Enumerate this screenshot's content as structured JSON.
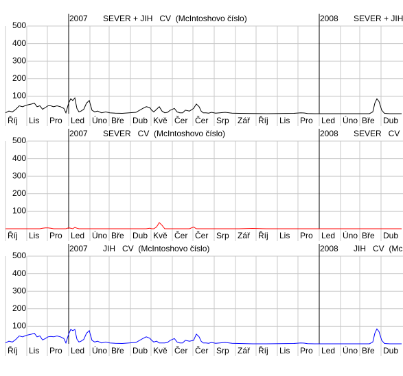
{
  "chart_data": [
    {
      "type": "line",
      "title": "SEVER + JIH   CV  (McIntoshovo číslo)",
      "markers": [
        {
          "x": 92,
          "label": "2007"
        },
        {
          "x": 457,
          "label": "2008"
        }
      ],
      "xlim": [
        -8,
        579
      ],
      "ylim": [
        0,
        500
      ],
      "yticks": [
        100,
        200,
        300,
        400,
        500
      ],
      "grid": true,
      "xticks": [
        {
          "value": 0,
          "label": "Říj"
        },
        {
          "value": 31,
          "label": "Lis"
        },
        {
          "value": 61,
          "label": "Pro"
        },
        {
          "value": 92,
          "label": "Led"
        },
        {
          "value": 123,
          "label": "Úno"
        },
        {
          "value": 151,
          "label": "Bře"
        },
        {
          "value": 182,
          "label": "Dub"
        },
        {
          "value": 212,
          "label": "Kvě"
        },
        {
          "value": 243,
          "label": "Čer"
        },
        {
          "value": 273,
          "label": "Čer"
        },
        {
          "value": 304,
          "label": "Srp"
        },
        {
          "value": 335,
          "label": "Zář"
        },
        {
          "value": 365,
          "label": "Říj"
        },
        {
          "value": 396,
          "label": "Lis"
        },
        {
          "value": 426,
          "label": "Pro"
        },
        {
          "value": 457,
          "label": "Led"
        },
        {
          "value": 488,
          "label": "Úno"
        },
        {
          "value": 516,
          "label": "Bře"
        },
        {
          "value": 547,
          "label": "Dub"
        }
      ],
      "series": [
        {
          "color": "#000000",
          "x": [
            0,
            5,
            10,
            15,
            20,
            25,
            28,
            32,
            38,
            42,
            46,
            50,
            54,
            58,
            62,
            66,
            70,
            75,
            80,
            85,
            88,
            92,
            95,
            98,
            101,
            104,
            107,
            110,
            114,
            118,
            122,
            126,
            130,
            134,
            140,
            146,
            152,
            160,
            170,
            180,
            190,
            200,
            205,
            210,
            213,
            216,
            220,
            224,
            228,
            232,
            236,
            240,
            246,
            250,
            254,
            258,
            262,
            268,
            274,
            278,
            282,
            285,
            288,
            292,
            296,
            300,
            306,
            312,
            320,
            330,
            340,
            360,
            380,
            400,
            420,
            430,
            435,
            440,
            450,
            470,
            500,
            520,
            530,
            535,
            538,
            541,
            544,
            548,
            552,
            560,
            577
          ],
          "values": [
            5,
            15,
            10,
            25,
            45,
            40,
            45,
            50,
            55,
            60,
            40,
            45,
            25,
            35,
            45,
            45,
            40,
            45,
            40,
            30,
            5,
            60,
            85,
            75,
            90,
            30,
            10,
            15,
            25,
            60,
            75,
            20,
            10,
            15,
            5,
            10,
            5,
            3,
            2,
            5,
            8,
            30,
            40,
            35,
            20,
            10,
            25,
            40,
            15,
            5,
            8,
            20,
            30,
            10,
            5,
            5,
            20,
            15,
            30,
            55,
            40,
            15,
            5,
            5,
            3,
            8,
            3,
            5,
            8,
            3,
            2,
            1,
            0,
            1,
            2,
            5,
            4,
            1,
            0,
            0,
            0,
            0,
            0,
            10,
            60,
            85,
            70,
            20,
            2,
            0,
            0
          ]
        }
      ]
    },
    {
      "type": "line",
      "title": "SEVER   CV  (McIntoshovo číslo)",
      "markers": [
        {
          "x": 92,
          "label": "2007"
        },
        {
          "x": 457,
          "label": "2008"
        }
      ],
      "xlim": [
        -8,
        579
      ],
      "ylim": [
        0,
        500
      ],
      "yticks": [
        100,
        200,
        300,
        400,
        500
      ],
      "grid": true,
      "xticks": [
        {
          "value": 0,
          "label": "Říj"
        },
        {
          "value": 31,
          "label": "Lis"
        },
        {
          "value": 61,
          "label": "Pro"
        },
        {
          "value": 92,
          "label": "Led"
        },
        {
          "value": 123,
          "label": "Úno"
        },
        {
          "value": 151,
          "label": "Bře"
        },
        {
          "value": 182,
          "label": "Dub"
        },
        {
          "value": 212,
          "label": "Kvě"
        },
        {
          "value": 243,
          "label": "Čer"
        },
        {
          "value": 273,
          "label": "Čer"
        },
        {
          "value": 304,
          "label": "Srp"
        },
        {
          "value": 335,
          "label": "Zář"
        },
        {
          "value": 365,
          "label": "Říj"
        },
        {
          "value": 396,
          "label": "Lis"
        },
        {
          "value": 426,
          "label": "Pro"
        },
        {
          "value": 457,
          "label": "Led"
        },
        {
          "value": 488,
          "label": "Úno"
        },
        {
          "value": 516,
          "label": "Bře"
        },
        {
          "value": 547,
          "label": "Dub"
        }
      ],
      "series": [
        {
          "color": "#ff0000",
          "x": [
            0,
            5,
            10,
            15,
            20,
            25,
            28,
            32,
            38,
            42,
            46,
            50,
            54,
            58,
            62,
            66,
            70,
            75,
            80,
            85,
            88,
            92,
            95,
            98,
            101,
            104,
            107,
            110,
            114,
            118,
            122,
            126,
            130,
            134,
            140,
            146,
            152,
            160,
            170,
            180,
            190,
            200,
            205,
            210,
            213,
            216,
            220,
            224,
            228,
            232,
            236,
            240,
            246,
            250,
            254,
            258,
            262,
            268,
            274,
            278,
            282,
            285,
            288,
            292,
            296,
            300,
            306,
            312,
            320,
            330,
            340,
            360,
            380,
            400,
            420,
            430,
            435,
            440,
            450,
            470,
            500,
            520,
            530,
            535,
            538,
            541,
            544,
            548,
            552,
            560,
            577
          ],
          "values": [
            0,
            0,
            0,
            0,
            0,
            0,
            0,
            0,
            0,
            0,
            0,
            0,
            3,
            5,
            5,
            3,
            0,
            0,
            0,
            0,
            0,
            5,
            3,
            0,
            8,
            3,
            0,
            0,
            0,
            0,
            0,
            0,
            0,
            0,
            0,
            0,
            0,
            0,
            0,
            0,
            0,
            0,
            0,
            3,
            0,
            0,
            10,
            35,
            20,
            0,
            0,
            0,
            0,
            0,
            0,
            0,
            0,
            0,
            10,
            0,
            0,
            0,
            0,
            0,
            0,
            0,
            0,
            0,
            0,
            0,
            0,
            2,
            0,
            0,
            0,
            0,
            0,
            0,
            0,
            0,
            0,
            0,
            0,
            0,
            0,
            0,
            0,
            0,
            0,
            0,
            0
          ]
        }
      ]
    },
    {
      "type": "line",
      "title": "JIH   CV  (McIntoshovo číslo)",
      "markers": [
        {
          "x": 92,
          "label": "2007"
        },
        {
          "x": 457,
          "label": "2008"
        }
      ],
      "xlim": [
        -8,
        579
      ],
      "ylim": [
        0,
        500
      ],
      "yticks": [
        100,
        200,
        300,
        400,
        500
      ],
      "grid": true,
      "xticks": [
        {
          "value": 0,
          "label": "Říj"
        },
        {
          "value": 31,
          "label": "Lis"
        },
        {
          "value": 61,
          "label": "Pro"
        },
        {
          "value": 92,
          "label": "Led"
        },
        {
          "value": 123,
          "label": "Úno"
        },
        {
          "value": 151,
          "label": "Bře"
        },
        {
          "value": 182,
          "label": "Dub"
        },
        {
          "value": 212,
          "label": "Kvě"
        },
        {
          "value": 243,
          "label": "Čer"
        },
        {
          "value": 273,
          "label": "Čer"
        },
        {
          "value": 304,
          "label": "Srp"
        },
        {
          "value": 335,
          "label": "Zář"
        },
        {
          "value": 365,
          "label": "Říj"
        },
        {
          "value": 396,
          "label": "Lis"
        },
        {
          "value": 426,
          "label": "Pro"
        },
        {
          "value": 457,
          "label": "Led"
        },
        {
          "value": 488,
          "label": "Úno"
        },
        {
          "value": 516,
          "label": "Bře"
        },
        {
          "value": 547,
          "label": "Dub"
        }
      ],
      "series": [
        {
          "color": "#0000ff",
          "x": [
            0,
            5,
            10,
            15,
            20,
            25,
            28,
            32,
            38,
            42,
            46,
            50,
            54,
            58,
            62,
            66,
            70,
            75,
            80,
            85,
            88,
            92,
            95,
            98,
            101,
            104,
            107,
            110,
            114,
            118,
            122,
            126,
            130,
            134,
            140,
            146,
            152,
            160,
            170,
            180,
            190,
            200,
            205,
            210,
            213,
            216,
            220,
            224,
            228,
            232,
            236,
            240,
            246,
            250,
            254,
            258,
            262,
            268,
            274,
            278,
            282,
            285,
            288,
            292,
            296,
            300,
            306,
            312,
            320,
            330,
            340,
            360,
            380,
            400,
            420,
            430,
            435,
            440,
            450,
            470,
            500,
            520,
            530,
            535,
            538,
            541,
            544,
            548,
            552,
            560,
            577
          ],
          "values": [
            5,
            15,
            10,
            25,
            45,
            40,
            45,
            50,
            55,
            60,
            40,
            45,
            22,
            30,
            40,
            42,
            40,
            45,
            40,
            30,
            5,
            55,
            82,
            75,
            82,
            27,
            10,
            15,
            25,
            60,
            75,
            20,
            10,
            15,
            5,
            10,
            5,
            3,
            2,
            5,
            8,
            30,
            40,
            32,
            20,
            10,
            15,
            5,
            5,
            5,
            8,
            20,
            30,
            10,
            5,
            5,
            20,
            15,
            20,
            55,
            40,
            15,
            5,
            5,
            3,
            8,
            3,
            5,
            8,
            3,
            2,
            0,
            0,
            1,
            2,
            5,
            4,
            1,
            0,
            0,
            0,
            0,
            0,
            10,
            60,
            85,
            70,
            20,
            2,
            0,
            0
          ]
        }
      ]
    }
  ]
}
